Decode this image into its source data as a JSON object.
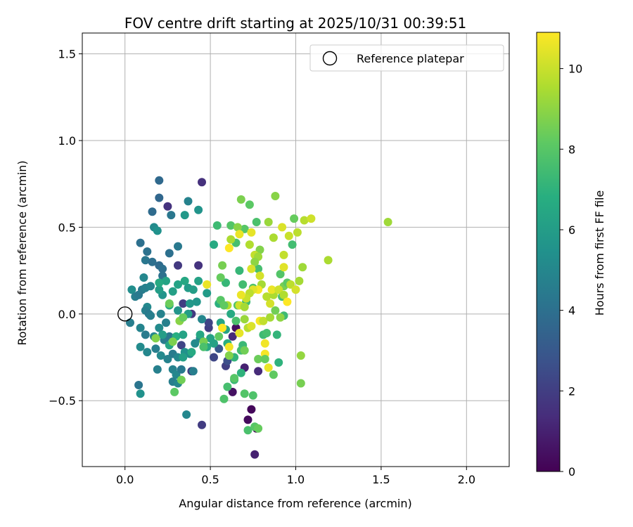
{
  "chart_data": {
    "type": "scatter",
    "title": "FOV centre drift starting at 2025/10/31 00:39:51",
    "xlabel": "Angular distance from reference (arcmin)",
    "ylabel": "Rotation from reference (arcmin)",
    "xlim": [
      -0.25,
      2.25
    ],
    "ylim": [
      -0.88,
      1.62
    ],
    "xticks": [
      0.0,
      0.5,
      1.0,
      1.5,
      2.0
    ],
    "xtick_labels": [
      "0.0",
      "0.5",
      "1.0",
      "1.5",
      "2.0"
    ],
    "yticks": [
      -0.5,
      0.0,
      0.5,
      1.0,
      1.5
    ],
    "ytick_labels": [
      "−0.5",
      "0.0",
      "0.5",
      "1.0",
      "1.5"
    ],
    "grid": true,
    "legend": {
      "position": "top-right",
      "entries": [
        "Reference platepar"
      ]
    },
    "reference_point": {
      "x": 0.0,
      "y": 0.0,
      "label": "Reference platepar"
    },
    "colorbar": {
      "label": "Hours from first FF file",
      "colormap": "viridis",
      "min": 0,
      "max": 10.9,
      "ticks": [
        0,
        2,
        4,
        6,
        8,
        10
      ],
      "tick_labels": [
        "0",
        "2",
        "4",
        "6",
        "8",
        "10"
      ]
    },
    "points": [
      {
        "x": 0.45,
        "y": 0.76,
        "c": 1.5
      },
      {
        "x": 0.25,
        "y": 0.62,
        "c": 1.6
      },
      {
        "x": 0.31,
        "y": 0.28,
        "c": 1.8
      },
      {
        "x": 0.43,
        "y": 0.28,
        "c": 1.6
      },
      {
        "x": 0.34,
        "y": 0.06,
        "c": 2.0
      },
      {
        "x": 0.39,
        "y": 0.0,
        "c": 1.8
      },
      {
        "x": 0.49,
        "y": -0.08,
        "c": 2.0
      },
      {
        "x": 0.49,
        "y": -0.05,
        "c": 2.2
      },
      {
        "x": 0.33,
        "y": -0.18,
        "c": 2.2
      },
      {
        "x": 0.39,
        "y": -0.33,
        "c": 1.9
      },
      {
        "x": 0.45,
        "y": -0.64,
        "c": 1.9
      },
      {
        "x": 0.52,
        "y": -0.25,
        "c": 2.3
      },
      {
        "x": 0.59,
        "y": -0.3,
        "c": 2.0
      },
      {
        "x": 0.63,
        "y": -0.45,
        "c": 0.5
      },
      {
        "x": 0.7,
        "y": -0.31,
        "c": 1.0
      },
      {
        "x": 0.63,
        "y": -0.13,
        "c": 1.3
      },
      {
        "x": 0.65,
        "y": -0.08,
        "c": 0.4
      },
      {
        "x": 0.72,
        "y": -0.61,
        "c": 0.3
      },
      {
        "x": 0.74,
        "y": -0.55,
        "c": 0.2
      },
      {
        "x": 0.77,
        "y": -0.66,
        "c": 0.1
      },
      {
        "x": 0.76,
        "y": -0.81,
        "c": 1.0
      },
      {
        "x": 0.78,
        "y": -0.33,
        "c": 1.3
      },
      {
        "x": 0.6,
        "y": -0.27,
        "c": 2.6
      },
      {
        "x": 0.55,
        "y": -0.2,
        "c": 3.0
      },
      {
        "x": 0.2,
        "y": 0.77,
        "c": 3.7
      },
      {
        "x": 0.2,
        "y": 0.67,
        "c": 3.6
      },
      {
        "x": 0.16,
        "y": 0.59,
        "c": 3.8
      },
      {
        "x": 0.09,
        "y": 0.41,
        "c": 4.0
      },
      {
        "x": 0.13,
        "y": 0.36,
        "c": 4.1
      },
      {
        "x": 0.12,
        "y": 0.31,
        "c": 4.3
      },
      {
        "x": 0.16,
        "y": 0.3,
        "c": 4.0
      },
      {
        "x": 0.2,
        "y": 0.28,
        "c": 3.8
      },
      {
        "x": 0.22,
        "y": 0.26,
        "c": 4.0
      },
      {
        "x": 0.22,
        "y": 0.22,
        "c": 4.1
      },
      {
        "x": 0.26,
        "y": 0.35,
        "c": 4.0
      },
      {
        "x": 0.31,
        "y": 0.39,
        "c": 4.4
      },
      {
        "x": 0.27,
        "y": 0.57,
        "c": 4.3
      },
      {
        "x": 0.37,
        "y": 0.65,
        "c": 4.8
      },
      {
        "x": 0.43,
        "y": 0.6,
        "c": 5.6
      },
      {
        "x": 0.35,
        "y": 0.57,
        "c": 5.8
      },
      {
        "x": 0.17,
        "y": 0.5,
        "c": 5.2
      },
      {
        "x": 0.19,
        "y": 0.48,
        "c": 5.5
      },
      {
        "x": 0.04,
        "y": 0.14,
        "c": 5.3
      },
      {
        "x": 0.06,
        "y": 0.1,
        "c": 4.6
      },
      {
        "x": 0.08,
        "y": 0.11,
        "c": 4.4
      },
      {
        "x": 0.1,
        "y": 0.14,
        "c": 4.5
      },
      {
        "x": 0.12,
        "y": 0.15,
        "c": 4.7
      },
      {
        "x": 0.15,
        "y": 0.16,
        "c": 4.9
      },
      {
        "x": 0.11,
        "y": 0.21,
        "c": 5.0
      },
      {
        "x": 0.13,
        "y": 0.04,
        "c": 5.1
      },
      {
        "x": 0.12,
        "y": 0.02,
        "c": 4.7
      },
      {
        "x": 0.14,
        "y": 0.0,
        "c": 4.4
      },
      {
        "x": 0.15,
        "y": -0.01,
        "c": 4.6
      },
      {
        "x": 0.21,
        "y": 0.0,
        "c": 4.8
      },
      {
        "x": 0.03,
        "y": -0.05,
        "c": 4.6
      },
      {
        "x": 0.09,
        "y": -0.08,
        "c": 4.9
      },
      {
        "x": 0.12,
        "y": -0.12,
        "c": 4.5
      },
      {
        "x": 0.17,
        "y": -0.13,
        "c": 5.0
      },
      {
        "x": 0.2,
        "y": -0.08,
        "c": 5.2
      },
      {
        "x": 0.24,
        "y": -0.05,
        "c": 4.7
      },
      {
        "x": 0.23,
        "y": -0.15,
        "c": 4.5
      },
      {
        "x": 0.26,
        "y": -0.13,
        "c": 4.3
      },
      {
        "x": 0.09,
        "y": -0.19,
        "c": 5.2
      },
      {
        "x": 0.13,
        "y": -0.22,
        "c": 5.0
      },
      {
        "x": 0.18,
        "y": -0.2,
        "c": 4.6
      },
      {
        "x": 0.21,
        "y": -0.24,
        "c": 5.1
      },
      {
        "x": 0.25,
        "y": -0.26,
        "c": 4.8
      },
      {
        "x": 0.28,
        "y": -0.23,
        "c": 4.5
      },
      {
        "x": 0.31,
        "y": -0.25,
        "c": 5.0
      },
      {
        "x": 0.19,
        "y": -0.32,
        "c": 4.7
      },
      {
        "x": 0.28,
        "y": -0.32,
        "c": 4.8
      },
      {
        "x": 0.3,
        "y": -0.35,
        "c": 5.0
      },
      {
        "x": 0.33,
        "y": -0.32,
        "c": 4.4
      },
      {
        "x": 0.28,
        "y": -0.39,
        "c": 4.6
      },
      {
        "x": 0.31,
        "y": -0.4,
        "c": 5.0
      },
      {
        "x": 0.08,
        "y": -0.41,
        "c": 4.2
      },
      {
        "x": 0.09,
        "y": -0.46,
        "c": 5.5
      },
      {
        "x": 0.36,
        "y": -0.58,
        "c": 5.0
      },
      {
        "x": 0.4,
        "y": -0.33,
        "c": 4.6
      },
      {
        "x": 0.35,
        "y": -0.22,
        "c": 5.5
      },
      {
        "x": 0.38,
        "y": -0.23,
        "c": 5.3
      },
      {
        "x": 0.41,
        "y": -0.17,
        "c": 5.2
      },
      {
        "x": 0.44,
        "y": -0.14,
        "c": 5.1
      },
      {
        "x": 0.45,
        "y": -0.03,
        "c": 5.0
      },
      {
        "x": 0.5,
        "y": -0.14,
        "c": 6.2
      },
      {
        "x": 0.48,
        "y": 0.12,
        "c": 5.9
      },
      {
        "x": 0.42,
        "y": 0.07,
        "c": 5.7
      },
      {
        "x": 0.38,
        "y": 0.06,
        "c": 5.8
      },
      {
        "x": 0.37,
        "y": 0.0,
        "c": 6.0
      },
      {
        "x": 0.31,
        "y": 0.02,
        "c": 5.6
      },
      {
        "x": 0.26,
        "y": 0.05,
        "c": 6.7
      },
      {
        "x": 0.28,
        "y": 0.13,
        "c": 6.1
      },
      {
        "x": 0.31,
        "y": 0.17,
        "c": 6.3
      },
      {
        "x": 0.35,
        "y": 0.19,
        "c": 6.5
      },
      {
        "x": 0.37,
        "y": 0.15,
        "c": 5.9
      },
      {
        "x": 0.4,
        "y": 0.14,
        "c": 6.0
      },
      {
        "x": 0.43,
        "y": 0.19,
        "c": 6.2
      },
      {
        "x": 0.24,
        "y": 0.19,
        "c": 6.3
      },
      {
        "x": 0.22,
        "y": 0.11,
        "c": 5.6
      },
      {
        "x": 0.2,
        "y": 0.14,
        "c": 6.0
      },
      {
        "x": 0.2,
        "y": 0.18,
        "c": 6.6
      },
      {
        "x": 0.22,
        "y": -0.12,
        "c": 6.0
      },
      {
        "x": 0.26,
        "y": -0.18,
        "c": 6.4
      },
      {
        "x": 0.3,
        "y": -0.13,
        "c": 6.8
      },
      {
        "x": 0.34,
        "y": -0.12,
        "c": 6.3
      },
      {
        "x": 0.34,
        "y": -0.25,
        "c": 6.1
      },
      {
        "x": 0.39,
        "y": -0.22,
        "c": 6.6
      },
      {
        "x": 0.44,
        "y": -0.12,
        "c": 6.5
      },
      {
        "x": 0.48,
        "y": -0.19,
        "c": 6.6
      },
      {
        "x": 0.52,
        "y": -0.17,
        "c": 6.2
      },
      {
        "x": 0.56,
        "y": -0.05,
        "c": 6.4
      },
      {
        "x": 0.59,
        "y": -0.09,
        "c": 6.3
      },
      {
        "x": 0.6,
        "y": -0.17,
        "c": 6.8
      },
      {
        "x": 0.62,
        "y": 0.0,
        "c": 6.6
      },
      {
        "x": 0.55,
        "y": 0.06,
        "c": 6.9
      },
      {
        "x": 0.59,
        "y": 0.18,
        "c": 7.2
      },
      {
        "x": 0.52,
        "y": 0.4,
        "c": 6.6
      },
      {
        "x": 0.54,
        "y": 0.51,
        "c": 7.4
      },
      {
        "x": 0.62,
        "y": 0.51,
        "c": 7.9
      },
      {
        "x": 0.65,
        "y": 0.41,
        "c": 7.6
      },
      {
        "x": 0.67,
        "y": 0.25,
        "c": 7.2
      },
      {
        "x": 0.69,
        "y": 0.17,
        "c": 7.5
      },
      {
        "x": 0.71,
        "y": 0.07,
        "c": 7.4
      },
      {
        "x": 0.66,
        "y": 0.05,
        "c": 7.8
      },
      {
        "x": 0.65,
        "y": -0.04,
        "c": 7.7
      },
      {
        "x": 0.69,
        "y": -0.18,
        "c": 7.3
      },
      {
        "x": 0.68,
        "y": -0.21,
        "c": 7.5
      },
      {
        "x": 0.64,
        "y": -0.25,
        "c": 7.1
      },
      {
        "x": 0.68,
        "y": -0.34,
        "c": 7.0
      },
      {
        "x": 0.64,
        "y": -0.38,
        "c": 7.3
      },
      {
        "x": 0.6,
        "y": -0.42,
        "c": 7.6
      },
      {
        "x": 0.58,
        "y": -0.49,
        "c": 7.8
      },
      {
        "x": 0.7,
        "y": -0.46,
        "c": 7.9
      },
      {
        "x": 0.72,
        "y": -0.67,
        "c": 7.7
      },
      {
        "x": 0.76,
        "y": -0.65,
        "c": 8.0
      },
      {
        "x": 0.75,
        "y": -0.47,
        "c": 7.8
      },
      {
        "x": 0.78,
        "y": -0.66,
        "c": 8.3
      },
      {
        "x": 0.81,
        "y": -0.12,
        "c": 7.4
      },
      {
        "x": 0.83,
        "y": -0.11,
        "c": 7.6
      },
      {
        "x": 0.89,
        "y": -0.12,
        "c": 7.1
      },
      {
        "x": 0.9,
        "y": -0.28,
        "c": 7.0
      },
      {
        "x": 0.87,
        "y": -0.35,
        "c": 8.2
      },
      {
        "x": 0.93,
        "y": -0.01,
        "c": 7.4
      },
      {
        "x": 0.88,
        "y": 0.02,
        "c": 8.5
      },
      {
        "x": 0.92,
        "y": 0.1,
        "c": 7.6
      },
      {
        "x": 0.93,
        "y": 0.16,
        "c": 8.6
      },
      {
        "x": 0.91,
        "y": 0.23,
        "c": 7.9
      },
      {
        "x": 0.95,
        "y": 0.18,
        "c": 8.1
      },
      {
        "x": 0.98,
        "y": 0.4,
        "c": 7.5
      },
      {
        "x": 0.99,
        "y": 0.55,
        "c": 8.3
      },
      {
        "x": 0.88,
        "y": 0.68,
        "c": 8.9
      },
      {
        "x": 0.79,
        "y": 0.37,
        "c": 8.8
      },
      {
        "x": 0.78,
        "y": 0.26,
        "c": 7.6
      },
      {
        "x": 0.75,
        "y": 0.15,
        "c": 7.8
      },
      {
        "x": 0.77,
        "y": 0.53,
        "c": 7.7
      },
      {
        "x": 0.73,
        "y": 0.63,
        "c": 8.1
      },
      {
        "x": 0.68,
        "y": 0.66,
        "c": 8.7
      },
      {
        "x": 0.7,
        "y": 0.49,
        "c": 8.0
      },
      {
        "x": 0.66,
        "y": 0.5,
        "c": 8.9
      },
      {
        "x": 0.62,
        "y": 0.43,
        "c": 9.5
      },
      {
        "x": 0.61,
        "y": 0.38,
        "c": 10.9
      },
      {
        "x": 0.67,
        "y": 0.46,
        "c": 10.6
      },
      {
        "x": 0.74,
        "y": 0.47,
        "c": 10.5
      },
      {
        "x": 0.73,
        "y": 0.4,
        "c": 9.6
      },
      {
        "x": 0.76,
        "y": 0.34,
        "c": 9.9
      },
      {
        "x": 0.78,
        "y": 0.33,
        "c": 9.3
      },
      {
        "x": 0.76,
        "y": 0.3,
        "c": 9.0
      },
      {
        "x": 0.74,
        "y": 0.26,
        "c": 10.3
      },
      {
        "x": 0.79,
        "y": 0.22,
        "c": 10.2
      },
      {
        "x": 0.8,
        "y": 0.17,
        "c": 9.4
      },
      {
        "x": 0.78,
        "y": 0.14,
        "c": 10.8
      },
      {
        "x": 0.75,
        "y": 0.14,
        "c": 10.4
      },
      {
        "x": 0.73,
        "y": 0.12,
        "c": 9.8
      },
      {
        "x": 0.71,
        "y": 0.09,
        "c": 10.0
      },
      {
        "x": 0.68,
        "y": 0.11,
        "c": 10.6
      },
      {
        "x": 0.67,
        "y": 0.05,
        "c": 10.1
      },
      {
        "x": 0.7,
        "y": 0.04,
        "c": 9.4
      },
      {
        "x": 0.6,
        "y": 0.05,
        "c": 9.6
      },
      {
        "x": 0.57,
        "y": -0.08,
        "c": 10.9
      },
      {
        "x": 0.61,
        "y": -0.19,
        "c": 10.7
      },
      {
        "x": 0.67,
        "y": -0.11,
        "c": 10.5
      },
      {
        "x": 0.7,
        "y": -0.03,
        "c": 9.2
      },
      {
        "x": 0.72,
        "y": -0.08,
        "c": 9.7
      },
      {
        "x": 0.74,
        "y": -0.07,
        "c": 10.3
      },
      {
        "x": 0.79,
        "y": -0.04,
        "c": 10.8
      },
      {
        "x": 0.81,
        "y": -0.04,
        "c": 9.9
      },
      {
        "x": 0.85,
        "y": 0.06,
        "c": 10.2
      },
      {
        "x": 0.83,
        "y": 0.1,
        "c": 9.7
      },
      {
        "x": 0.87,
        "y": 0.11,
        "c": 9.5
      },
      {
        "x": 0.86,
        "y": 0.14,
        "c": 10.6
      },
      {
        "x": 0.9,
        "y": 0.14,
        "c": 10.1
      },
      {
        "x": 0.93,
        "y": 0.11,
        "c": 9.6
      },
      {
        "x": 0.95,
        "y": 0.07,
        "c": 10.9
      },
      {
        "x": 0.97,
        "y": 0.17,
        "c": 9.8
      },
      {
        "x": 1.0,
        "y": 0.14,
        "c": 10.2
      },
      {
        "x": 1.02,
        "y": 0.19,
        "c": 9.4
      },
      {
        "x": 1.04,
        "y": 0.27,
        "c": 9.3
      },
      {
        "x": 0.93,
        "y": 0.27,
        "c": 10.4
      },
      {
        "x": 0.93,
        "y": 0.34,
        "c": 9.9
      },
      {
        "x": 0.87,
        "y": 0.44,
        "c": 9.5
      },
      {
        "x": 0.84,
        "y": 0.53,
        "c": 9.2
      },
      {
        "x": 0.92,
        "y": 0.5,
        "c": 10.3
      },
      {
        "x": 0.96,
        "y": 0.45,
        "c": 10.0
      },
      {
        "x": 1.01,
        "y": 0.47,
        "c": 9.8
      },
      {
        "x": 1.05,
        "y": 0.54,
        "c": 9.7
      },
      {
        "x": 1.09,
        "y": 0.55,
        "c": 10.1
      },
      {
        "x": 1.19,
        "y": 0.31,
        "c": 9.5
      },
      {
        "x": 1.54,
        "y": 0.53,
        "c": 9.3
      },
      {
        "x": 1.03,
        "y": -0.24,
        "c": 9.1
      },
      {
        "x": 1.03,
        "y": -0.4,
        "c": 8.6
      },
      {
        "x": 0.91,
        "y": -0.02,
        "c": 9.0
      },
      {
        "x": 0.85,
        "y": -0.02,
        "c": 9.4
      },
      {
        "x": 0.82,
        "y": -0.17,
        "c": 10.7
      },
      {
        "x": 0.82,
        "y": -0.23,
        "c": 10.8
      },
      {
        "x": 0.84,
        "y": -0.31,
        "c": 10.6
      },
      {
        "x": 0.78,
        "y": -0.26,
        "c": 8.4
      },
      {
        "x": 0.82,
        "y": -0.26,
        "c": 8.3
      },
      {
        "x": 0.64,
        "y": -0.37,
        "c": 8.0
      },
      {
        "x": 0.7,
        "y": -0.21,
        "c": 8.5
      },
      {
        "x": 0.61,
        "y": -0.24,
        "c": 8.8
      },
      {
        "x": 0.55,
        "y": -0.13,
        "c": 8.2
      },
      {
        "x": 0.46,
        "y": -0.16,
        "c": 8.6
      },
      {
        "x": 0.46,
        "y": -0.19,
        "c": 7.7
      },
      {
        "x": 0.56,
        "y": 0.21,
        "c": 8.3
      },
      {
        "x": 0.57,
        "y": 0.28,
        "c": 8.6
      },
      {
        "x": 0.56,
        "y": 0.08,
        "c": 8.0
      },
      {
        "x": 0.58,
        "y": 0.05,
        "c": 8.2
      },
      {
        "x": 0.32,
        "y": -0.04,
        "c": 8.9
      },
      {
        "x": 0.34,
        "y": -0.02,
        "c": 8.3
      },
      {
        "x": 0.26,
        "y": 0.06,
        "c": 8.4
      },
      {
        "x": 0.29,
        "y": -0.45,
        "c": 8.1
      },
      {
        "x": 0.33,
        "y": -0.38,
        "c": 8.5
      },
      {
        "x": 0.28,
        "y": -0.16,
        "c": 8.7
      },
      {
        "x": 0.18,
        "y": -0.14,
        "c": 8.8
      },
      {
        "x": 0.48,
        "y": 0.17,
        "c": 10.6
      }
    ]
  }
}
